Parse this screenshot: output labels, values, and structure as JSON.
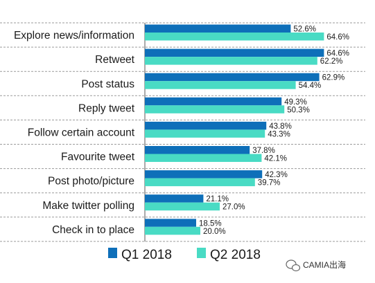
{
  "chart_data": {
    "type": "bar",
    "orientation": "horizontal",
    "categories": [
      "Explore news/information",
      "Retweet",
      "Post status",
      "Reply tweet",
      "Follow certain account",
      "Favourite tweet",
      "Post photo/picture",
      "Make twitter polling",
      "Check in to place"
    ],
    "series": [
      {
        "name": "Q1 2018",
        "color": "#0e6fb9",
        "values": [
          52.6,
          64.6,
          62.9,
          49.3,
          43.8,
          37.8,
          42.3,
          21.1,
          18.5
        ],
        "labels": [
          "52.6%",
          "64.6%",
          "62.9%",
          "49.3%",
          "43.8%",
          "37.8%",
          "42.3%",
          "21.1%",
          "18.5%"
        ]
      },
      {
        "name": "Q2 2018",
        "color": "#49dbc4",
        "values": [
          64.6,
          62.2,
          54.4,
          50.3,
          43.3,
          42.1,
          39.7,
          27.0,
          20.0
        ],
        "labels": [
          "64.6%",
          "62.2%",
          "54.4%",
          "50.3%",
          "43.3%",
          "42.1%",
          "39.7%",
          "27.0%",
          "20.0%"
        ]
      }
    ],
    "xlim": [
      0,
      70
    ],
    "legend_position": "bottom",
    "gridlines": "dashed row separators"
  },
  "watermark": {
    "text": "CAMIA出海",
    "icon": "wechat-icon"
  }
}
